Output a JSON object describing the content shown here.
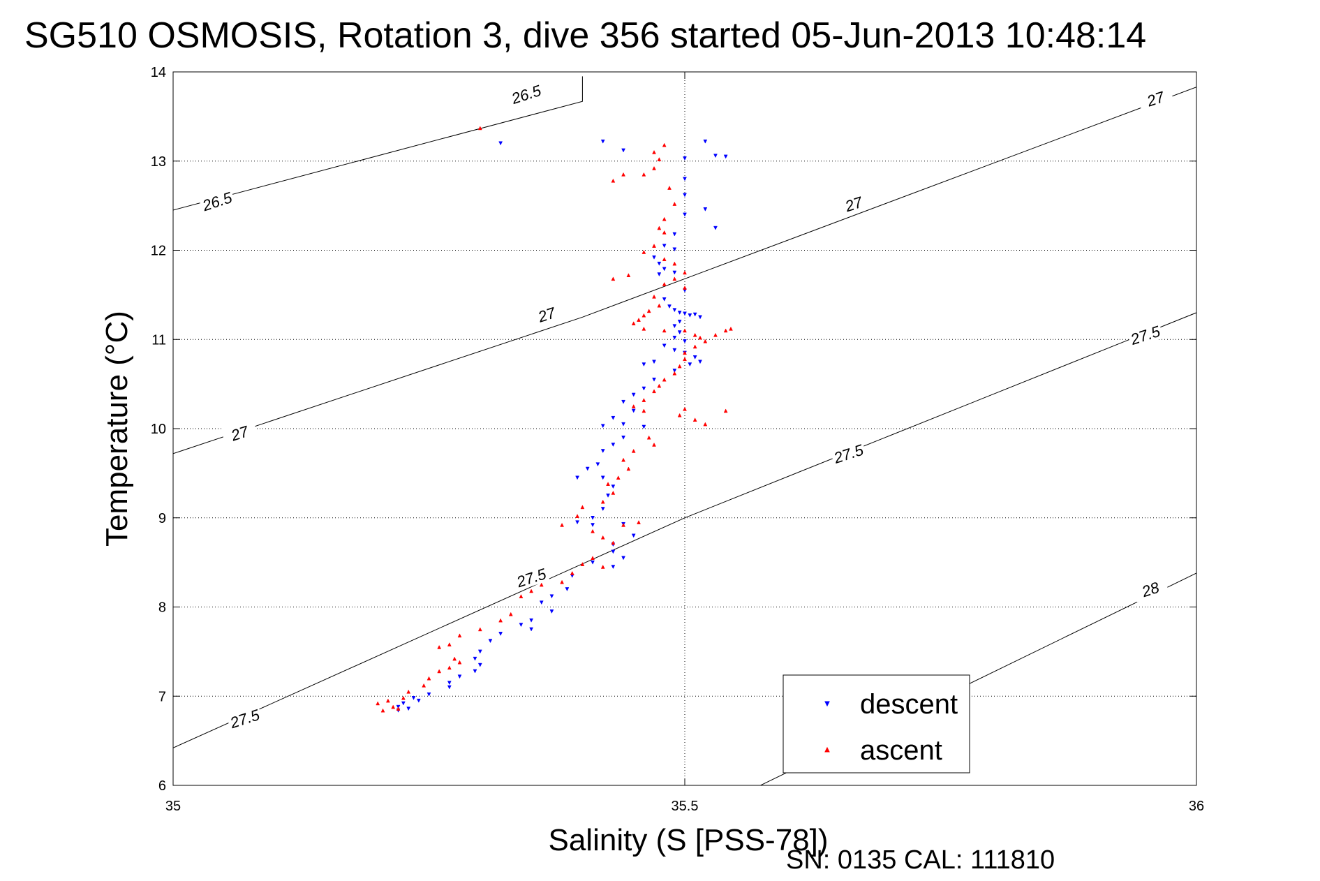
{
  "chart_data": {
    "type": "scatter",
    "title": "SG510 OSMOSIS, Rotation 3, dive 356 started 05-Jun-2013 10:48:14",
    "xlabel": "Salinity (S [PSS-78])",
    "ylabel": "Temperature (°C)",
    "xlim": [
      35,
      36
    ],
    "ylim": [
      6,
      14
    ],
    "xticks": [
      35,
      35.5,
      36
    ],
    "xtick_labels": [
      "35",
      "35.5",
      "36"
    ],
    "yticks": [
      6,
      7,
      8,
      9,
      10,
      11,
      12,
      13,
      14
    ],
    "ytick_labels": [
      "6",
      "7",
      "8",
      "9",
      "10",
      "11",
      "12",
      "13",
      "14"
    ],
    "grid": true,
    "legend_position": "lower-right",
    "footer": "SN: 0135  CAL: 111810",
    "density_contours": [
      {
        "label": "26.5",
        "points": [
          [
            35.0,
            12.45
          ],
          [
            35.4,
            13.67
          ],
          [
            35.4,
            13.95
          ]
        ],
        "label_positions": [
          [
            35.043,
            12.55
          ],
          [
            35.345,
            13.75
          ]
        ]
      },
      {
        "label": "27",
        "points": [
          [
            35.0,
            9.72
          ],
          [
            35.4,
            11.25
          ],
          [
            36.0,
            13.83
          ]
        ],
        "label_positions": [
          [
            35.065,
            9.95
          ],
          [
            35.365,
            11.28
          ],
          [
            35.665,
            12.52
          ],
          [
            35.96,
            13.7
          ]
        ]
      },
      {
        "label": "27.5",
        "points": [
          [
            35.0,
            6.42
          ],
          [
            35.5,
            9.0
          ],
          [
            36.0,
            11.3
          ]
        ],
        "label_positions": [
          [
            35.07,
            6.75
          ],
          [
            35.35,
            8.33
          ],
          [
            35.66,
            9.72
          ],
          [
            35.95,
            11.05
          ]
        ]
      },
      {
        "label": "28",
        "points": [
          [
            35.565,
            5.95
          ],
          [
            36.0,
            8.38
          ]
        ],
        "label_positions": [
          [
            35.955,
            8.2
          ]
        ]
      }
    ],
    "series": [
      {
        "name": "descent",
        "color": "#0000ff",
        "marker": "triangle-down",
        "points": [
          [
            35.32,
            13.2
          ],
          [
            35.42,
            13.22
          ],
          [
            35.44,
            13.12
          ],
          [
            35.52,
            13.22
          ],
          [
            35.53,
            13.06
          ],
          [
            35.54,
            13.05
          ],
          [
            35.5,
            13.03
          ],
          [
            35.5,
            12.8
          ],
          [
            35.5,
            12.62
          ],
          [
            35.5,
            12.4
          ],
          [
            35.52,
            12.46
          ],
          [
            35.53,
            12.25
          ],
          [
            35.49,
            12.18
          ],
          [
            35.48,
            12.05
          ],
          [
            35.49,
            12.01
          ],
          [
            35.47,
            11.92
          ],
          [
            35.475,
            11.85
          ],
          [
            35.48,
            11.79
          ],
          [
            35.475,
            11.73
          ],
          [
            35.49,
            11.75
          ],
          [
            35.5,
            11.55
          ],
          [
            35.48,
            11.45
          ],
          [
            35.485,
            11.37
          ],
          [
            35.49,
            11.33
          ],
          [
            35.495,
            11.3
          ],
          [
            35.5,
            11.29
          ],
          [
            35.505,
            11.27
          ],
          [
            35.51,
            11.28
          ],
          [
            35.515,
            11.25
          ],
          [
            35.495,
            11.2
          ],
          [
            35.49,
            11.15
          ],
          [
            35.495,
            11.08
          ],
          [
            35.49,
            11.02
          ],
          [
            35.5,
            10.98
          ],
          [
            35.48,
            10.93
          ],
          [
            35.49,
            10.88
          ],
          [
            35.5,
            10.85
          ],
          [
            35.51,
            10.8
          ],
          [
            35.515,
            10.75
          ],
          [
            35.505,
            10.72
          ],
          [
            35.47,
            10.75
          ],
          [
            35.46,
            10.72
          ],
          [
            35.49,
            10.65
          ],
          [
            35.47,
            10.55
          ],
          [
            35.46,
            10.45
          ],
          [
            35.45,
            10.38
          ],
          [
            35.44,
            10.3
          ],
          [
            35.45,
            10.2
          ],
          [
            35.43,
            10.12
          ],
          [
            35.44,
            10.05
          ],
          [
            35.42,
            10.03
          ],
          [
            35.46,
            10.02
          ],
          [
            35.44,
            9.9
          ],
          [
            35.43,
            9.82
          ],
          [
            35.42,
            9.75
          ],
          [
            35.415,
            9.6
          ],
          [
            35.405,
            9.55
          ],
          [
            35.395,
            9.45
          ],
          [
            35.42,
            9.45
          ],
          [
            35.43,
            9.35
          ],
          [
            35.425,
            9.25
          ],
          [
            35.42,
            9.1
          ],
          [
            35.41,
            9.0
          ],
          [
            35.395,
            8.95
          ],
          [
            35.41,
            8.92
          ],
          [
            35.44,
            8.93
          ],
          [
            35.45,
            8.8
          ],
          [
            35.43,
            8.7
          ],
          [
            35.43,
            8.62
          ],
          [
            35.44,
            8.55
          ],
          [
            35.41,
            8.5
          ],
          [
            35.43,
            8.45
          ],
          [
            35.39,
            8.35
          ],
          [
            35.385,
            8.2
          ],
          [
            35.37,
            8.12
          ],
          [
            35.36,
            8.05
          ],
          [
            35.37,
            7.95
          ],
          [
            35.35,
            7.85
          ],
          [
            35.34,
            7.8
          ],
          [
            35.35,
            7.75
          ],
          [
            35.32,
            7.7
          ],
          [
            35.31,
            7.62
          ],
          [
            35.3,
            7.5
          ],
          [
            35.295,
            7.42
          ],
          [
            35.3,
            7.35
          ],
          [
            35.295,
            7.28
          ],
          [
            35.28,
            7.22
          ],
          [
            35.27,
            7.15
          ],
          [
            35.27,
            7.1
          ],
          [
            35.25,
            7.02
          ],
          [
            35.235,
            6.98
          ],
          [
            35.24,
            6.95
          ],
          [
            35.225,
            6.92
          ],
          [
            35.22,
            6.88
          ],
          [
            35.23,
            6.86
          ],
          [
            35.22,
            6.84
          ]
        ]
      },
      {
        "name": "ascent",
        "color": "#ff0000",
        "marker": "triangle-up",
        "points": [
          [
            35.3,
            13.37
          ],
          [
            35.48,
            13.18
          ],
          [
            35.47,
            13.1
          ],
          [
            35.475,
            13.02
          ],
          [
            35.47,
            12.92
          ],
          [
            35.46,
            12.85
          ],
          [
            35.44,
            12.85
          ],
          [
            35.43,
            12.78
          ],
          [
            35.485,
            12.7
          ],
          [
            35.49,
            12.52
          ],
          [
            35.48,
            12.35
          ],
          [
            35.475,
            12.25
          ],
          [
            35.48,
            12.2
          ],
          [
            35.47,
            12.05
          ],
          [
            35.46,
            11.98
          ],
          [
            35.48,
            11.9
          ],
          [
            35.49,
            11.85
          ],
          [
            35.5,
            11.75
          ],
          [
            35.49,
            11.68
          ],
          [
            35.48,
            11.62
          ],
          [
            35.445,
            11.72
          ],
          [
            35.43,
            11.68
          ],
          [
            35.5,
            11.58
          ],
          [
            35.47,
            11.48
          ],
          [
            35.475,
            11.38
          ],
          [
            35.465,
            11.32
          ],
          [
            35.46,
            11.27
          ],
          [
            35.455,
            11.22
          ],
          [
            35.45,
            11.18
          ],
          [
            35.46,
            11.12
          ],
          [
            35.48,
            11.1
          ],
          [
            35.5,
            11.1
          ],
          [
            35.51,
            11.05
          ],
          [
            35.515,
            11.02
          ],
          [
            35.52,
            10.98
          ],
          [
            35.53,
            11.05
          ],
          [
            35.54,
            11.1
          ],
          [
            35.545,
            11.12
          ],
          [
            35.51,
            10.92
          ],
          [
            35.5,
            10.85
          ],
          [
            35.5,
            10.78
          ],
          [
            35.495,
            10.7
          ],
          [
            35.49,
            10.62
          ],
          [
            35.48,
            10.55
          ],
          [
            35.475,
            10.48
          ],
          [
            35.47,
            10.42
          ],
          [
            35.46,
            10.32
          ],
          [
            35.45,
            10.25
          ],
          [
            35.5,
            10.22
          ],
          [
            35.495,
            10.15
          ],
          [
            35.51,
            10.1
          ],
          [
            35.52,
            10.05
          ],
          [
            35.54,
            10.2
          ],
          [
            35.46,
            10.2
          ],
          [
            35.465,
            9.9
          ],
          [
            35.47,
            9.82
          ],
          [
            35.45,
            9.75
          ],
          [
            35.44,
            9.65
          ],
          [
            35.445,
            9.55
          ],
          [
            35.435,
            9.45
          ],
          [
            35.425,
            9.38
          ],
          [
            35.43,
            9.28
          ],
          [
            35.42,
            9.18
          ],
          [
            35.4,
            9.12
          ],
          [
            35.395,
            9.02
          ],
          [
            35.38,
            8.92
          ],
          [
            35.41,
            8.85
          ],
          [
            35.42,
            8.78
          ],
          [
            35.43,
            8.72
          ],
          [
            35.44,
            8.92
          ],
          [
            35.455,
            8.95
          ],
          [
            35.41,
            8.55
          ],
          [
            35.4,
            8.48
          ],
          [
            35.42,
            8.45
          ],
          [
            35.39,
            8.38
          ],
          [
            35.38,
            8.28
          ],
          [
            35.36,
            8.25
          ],
          [
            35.35,
            8.18
          ],
          [
            35.34,
            8.12
          ],
          [
            35.33,
            7.92
          ],
          [
            35.32,
            7.85
          ],
          [
            35.3,
            7.75
          ],
          [
            35.28,
            7.68
          ],
          [
            35.27,
            7.58
          ],
          [
            35.26,
            7.55
          ],
          [
            35.275,
            7.42
          ],
          [
            35.28,
            7.38
          ],
          [
            35.27,
            7.32
          ],
          [
            35.26,
            7.28
          ],
          [
            35.25,
            7.2
          ],
          [
            35.245,
            7.12
          ],
          [
            35.23,
            7.05
          ],
          [
            35.225,
            6.98
          ],
          [
            35.21,
            6.95
          ],
          [
            35.2,
            6.92
          ],
          [
            35.215,
            6.88
          ],
          [
            35.22,
            6.86
          ],
          [
            35.205,
            6.84
          ]
        ]
      }
    ]
  }
}
